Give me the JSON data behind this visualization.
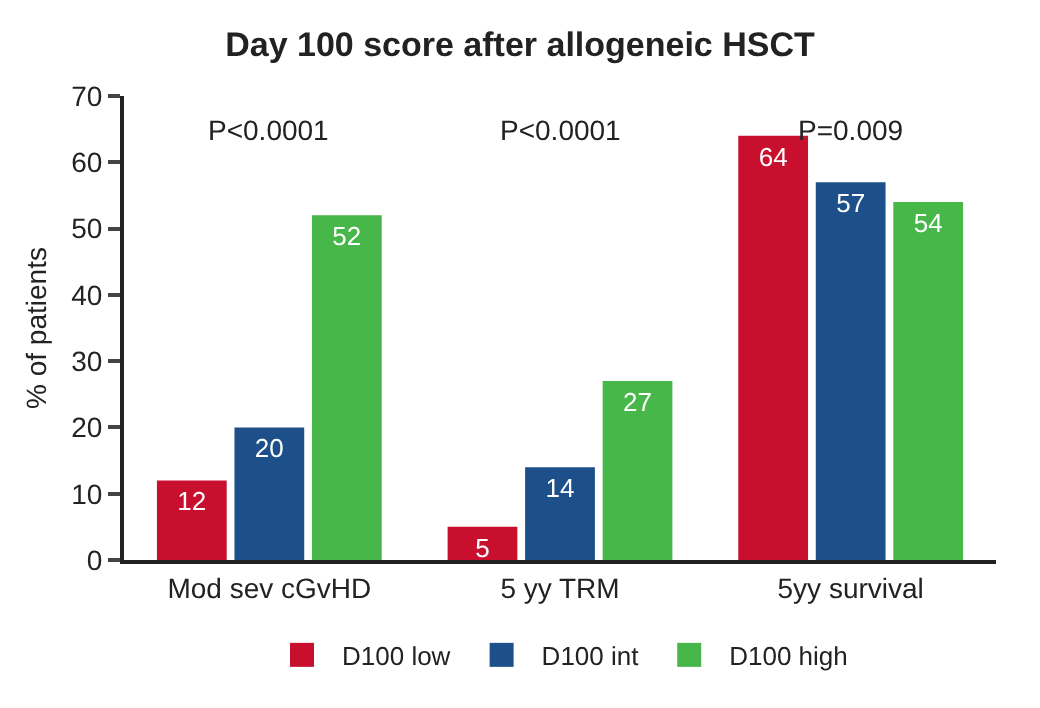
{
  "chart_data": {
    "type": "bar",
    "title": "Day 100 score after allogeneic HSCT",
    "ylabel": "% of patients",
    "categories": [
      "Mod sev cGvHD",
      "5 yy TRM",
      "5yy survival"
    ],
    "series": [
      {
        "name": "D100 low",
        "color": "#c8102e",
        "values": [
          12,
          5,
          64
        ]
      },
      {
        "name": "D100 int",
        "color": "#1d4f8a",
        "values": [
          20,
          14,
          57
        ]
      },
      {
        "name": "D100 high",
        "color": "#47b749",
        "values": [
          52,
          27,
          54
        ]
      }
    ],
    "ylim": [
      0,
      70
    ],
    "yticks": [
      0,
      10,
      20,
      30,
      40,
      50,
      60,
      70
    ],
    "grid": false,
    "legend": "bottom",
    "data_labels": true,
    "annotations": [
      "P<0.0001",
      "P<0.0001",
      "P=0.009"
    ]
  }
}
